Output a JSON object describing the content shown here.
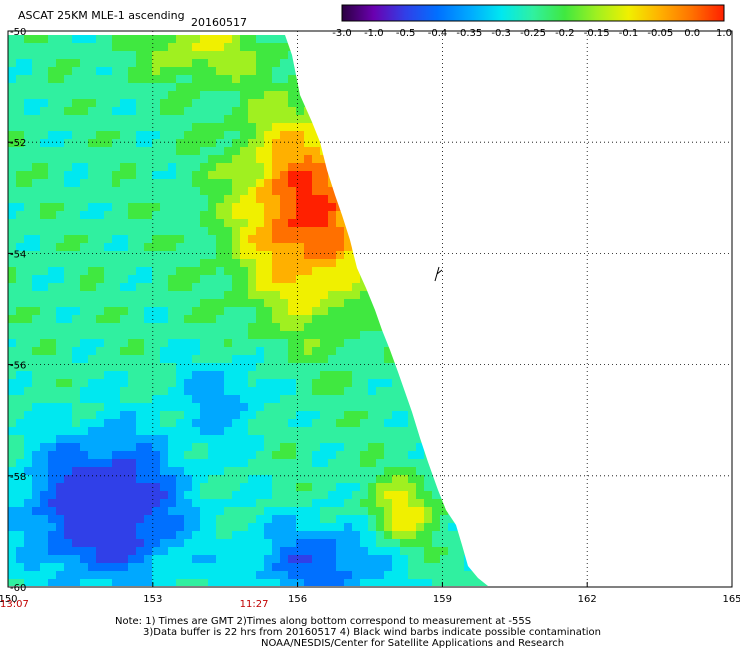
{
  "header": {
    "title": "ASCAT 25KM MLE-1 ascending",
    "date": "20160517"
  },
  "colorbar": {
    "labels": [
      "-3.0",
      "-1.0",
      "-0.5",
      "-0.4",
      "-0.35",
      "-0.3",
      "-0.25",
      "-0.2",
      "-0.15",
      "-0.1",
      "-0.05",
      "0.0",
      "1.0"
    ],
    "colors": [
      "#2b0040",
      "#6a00b0",
      "#3040e8",
      "#0070ff",
      "#00a8ff",
      "#00e8f0",
      "#30f0a0",
      "#40e840",
      "#a0f020",
      "#f0f000",
      "#ffb000",
      "#ff7000",
      "#ff2000"
    ]
  },
  "map": {
    "y_ticks": [
      "-50",
      "-52",
      "-54",
      "-56",
      "-58",
      "-60"
    ],
    "x_ticks": [
      "150",
      "153",
      "156",
      "159",
      "162",
      "165"
    ],
    "lon_range": [
      150,
      165
    ],
    "lat_range": [
      -60,
      -50
    ],
    "time_labels": [
      {
        "text": "13:07",
        "lon": 150
      },
      {
        "text": "11:27",
        "lon": 154.8
      }
    ]
  },
  "notes": {
    "line1": "Note: 1) Times are GMT 2)Times along bottom correspond to measurement at -55S",
    "line2": "3)Data buffer is 22 hrs from 20160517 4) Black wind barbs indicate possible contamination",
    "line3": "NOAA/NESDIS/Center for Satellite Applications and Research"
  }
}
